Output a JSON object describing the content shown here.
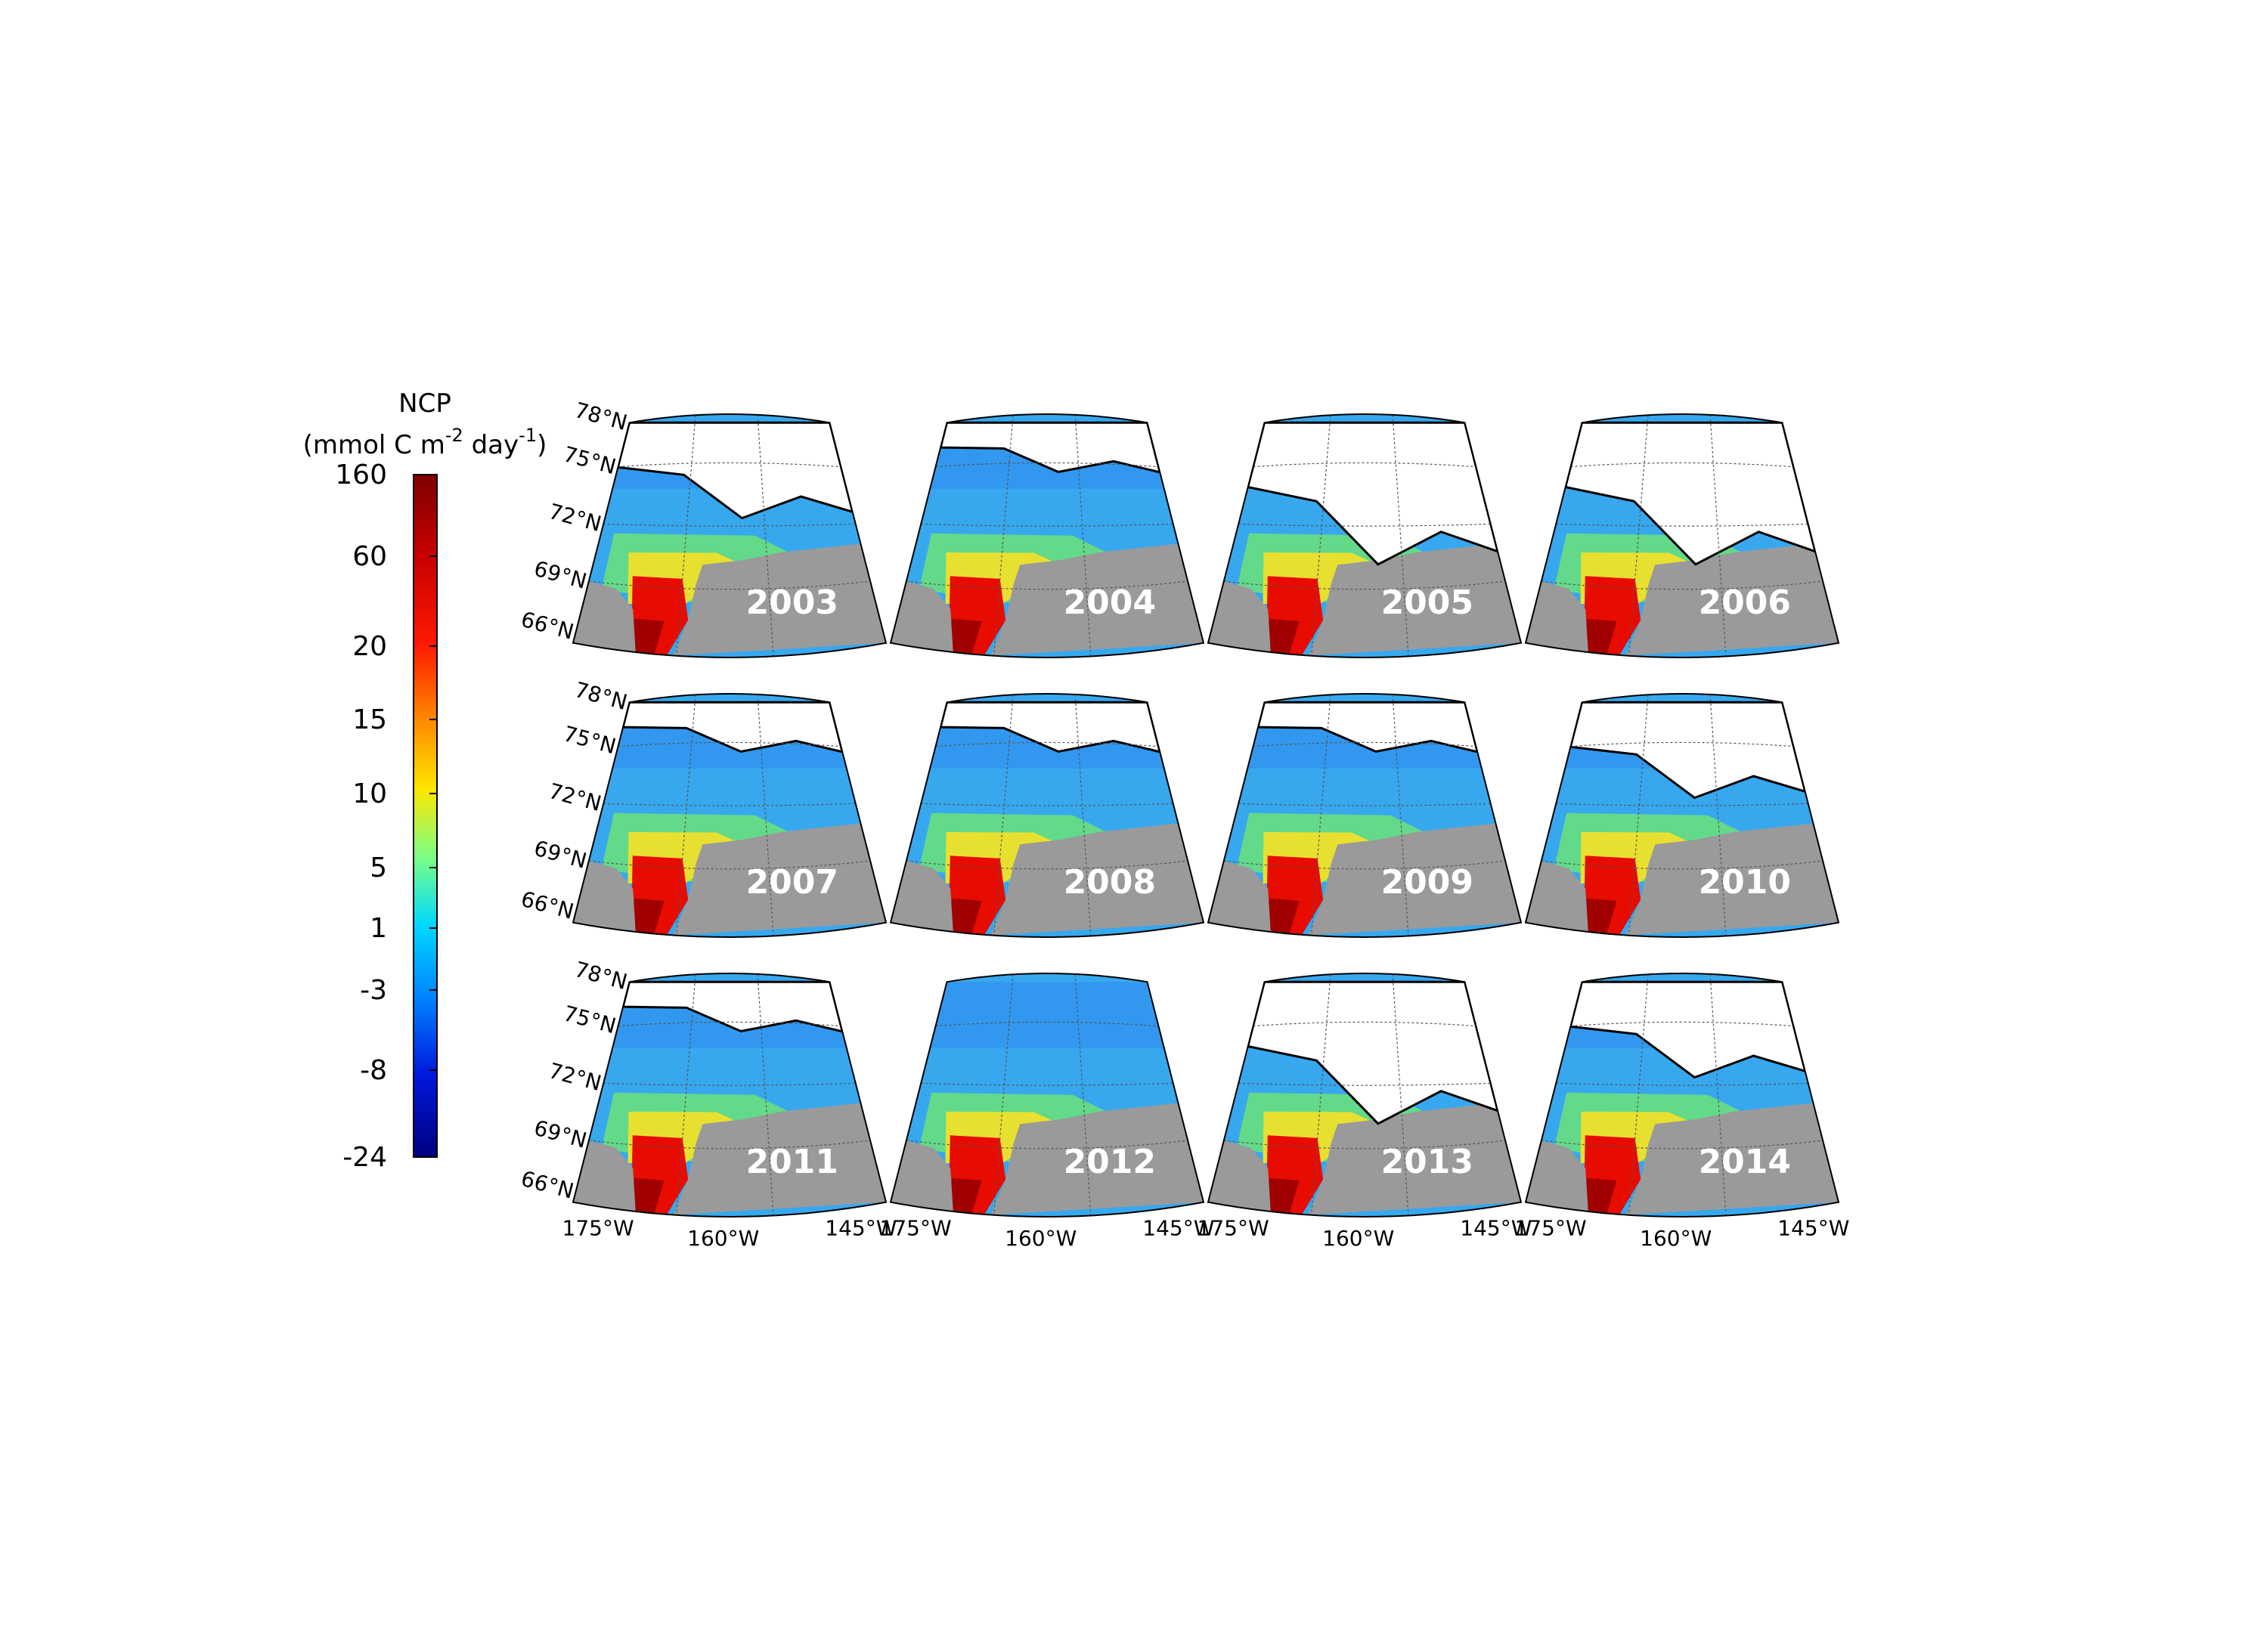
{
  "colorbar": {
    "title": "NCP",
    "unit_prefix": "(mmol C m",
    "unit_sup1": "-2",
    "unit_mid": " day",
    "unit_sup2": "-1",
    "unit_suffix": ")",
    "ticks": [
      "160",
      "60",
      "20",
      "15",
      "10",
      "5",
      "1",
      "-3",
      "-8",
      "-24"
    ],
    "colors": [
      "#7f0000",
      "#c80000",
      "#ff2200",
      "#ff8000",
      "#ffe000",
      "#80ff80",
      "#00d8ff",
      "#0088ff",
      "#0020e0",
      "#00007f"
    ]
  },
  "axes": {
    "lat_labels": [
      "78°N",
      "75°N",
      "72°N",
      "69°N",
      "66°N"
    ],
    "lon_labels": [
      "175°W",
      "160°W",
      "145°W"
    ]
  },
  "panels": [
    {
      "year": "2003",
      "ice": "medium"
    },
    {
      "year": "2004",
      "ice": "low"
    },
    {
      "year": "2005",
      "ice": "high"
    },
    {
      "year": "2006",
      "ice": "high"
    },
    {
      "year": "2007",
      "ice": "low"
    },
    {
      "year": "2008",
      "ice": "low"
    },
    {
      "year": "2009",
      "ice": "low"
    },
    {
      "year": "2010",
      "ice": "medium"
    },
    {
      "year": "2011",
      "ice": "low"
    },
    {
      "year": "2012",
      "ice": "none"
    },
    {
      "year": "2013",
      "ice": "high"
    },
    {
      "year": "2014",
      "ice": "medium"
    }
  ],
  "map_colors": {
    "land": "#9a9a9a",
    "ice": "#ffffff",
    "ocean_base": "#37a8ee",
    "ocean_north": "#2f8ef0",
    "shelf_green": "#63d98a",
    "shelf_yellow": "#e8e030",
    "hot_red": "#e80c00",
    "deep_red": "#a00000"
  }
}
